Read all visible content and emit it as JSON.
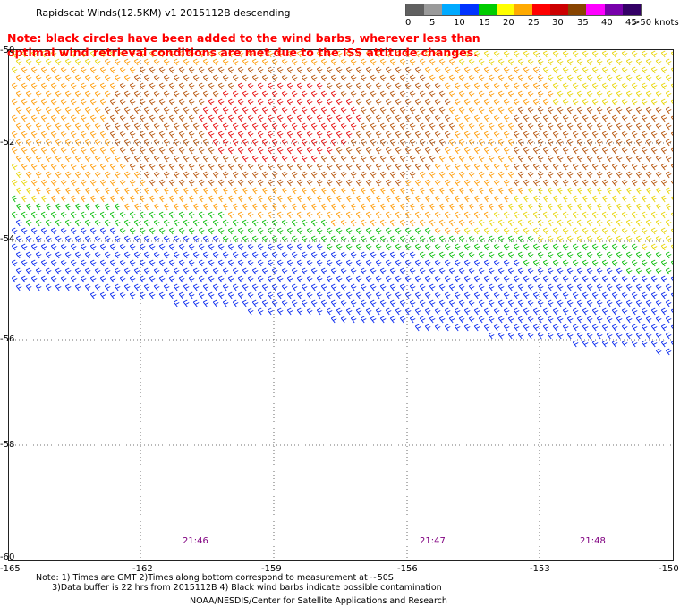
{
  "title": "Rapidscat Winds(12.5KM) v1 2015112B descending",
  "note": "Note: black circles have been added to the wind barbs, wherever less than optimal wind retrieval conditions are met due to the ISS attitude changes.",
  "legend": {
    "labels": [
      "0",
      "5",
      "10",
      "15",
      "20",
      "25",
      "30",
      "35",
      "40",
      "45",
      ">50 knots"
    ],
    "colors": [
      "#606060",
      "#9a9a9a",
      "#00aaff",
      "#0033ff",
      "#00cc00",
      "#ffff00",
      "#ffaa00",
      "#ff0000",
      "#cc0000",
      "#884400",
      "#ff00ff",
      "#7700aa",
      "#330066"
    ]
  },
  "map": {
    "lat_labels": [
      "-50",
      "-52",
      "-54",
      "-56",
      "-58",
      "-60"
    ],
    "lon_labels": [
      "-165",
      "-162",
      "-159",
      "-156",
      "-153",
      "-150"
    ],
    "time_labels": [
      "21:46",
      "21:47",
      "21:48"
    ]
  },
  "footer": {
    "note_line1": "Note: 1) Times are GMT 2)Times along bottom correspond to measurement at ~50S",
    "note_line2": "      3)Data buffer is 22 hrs from 2015112B 4) Black wind barbs indicate possible contamination",
    "credit": "NOAA/NESDIS/Center for Satellite Applications and Research"
  }
}
